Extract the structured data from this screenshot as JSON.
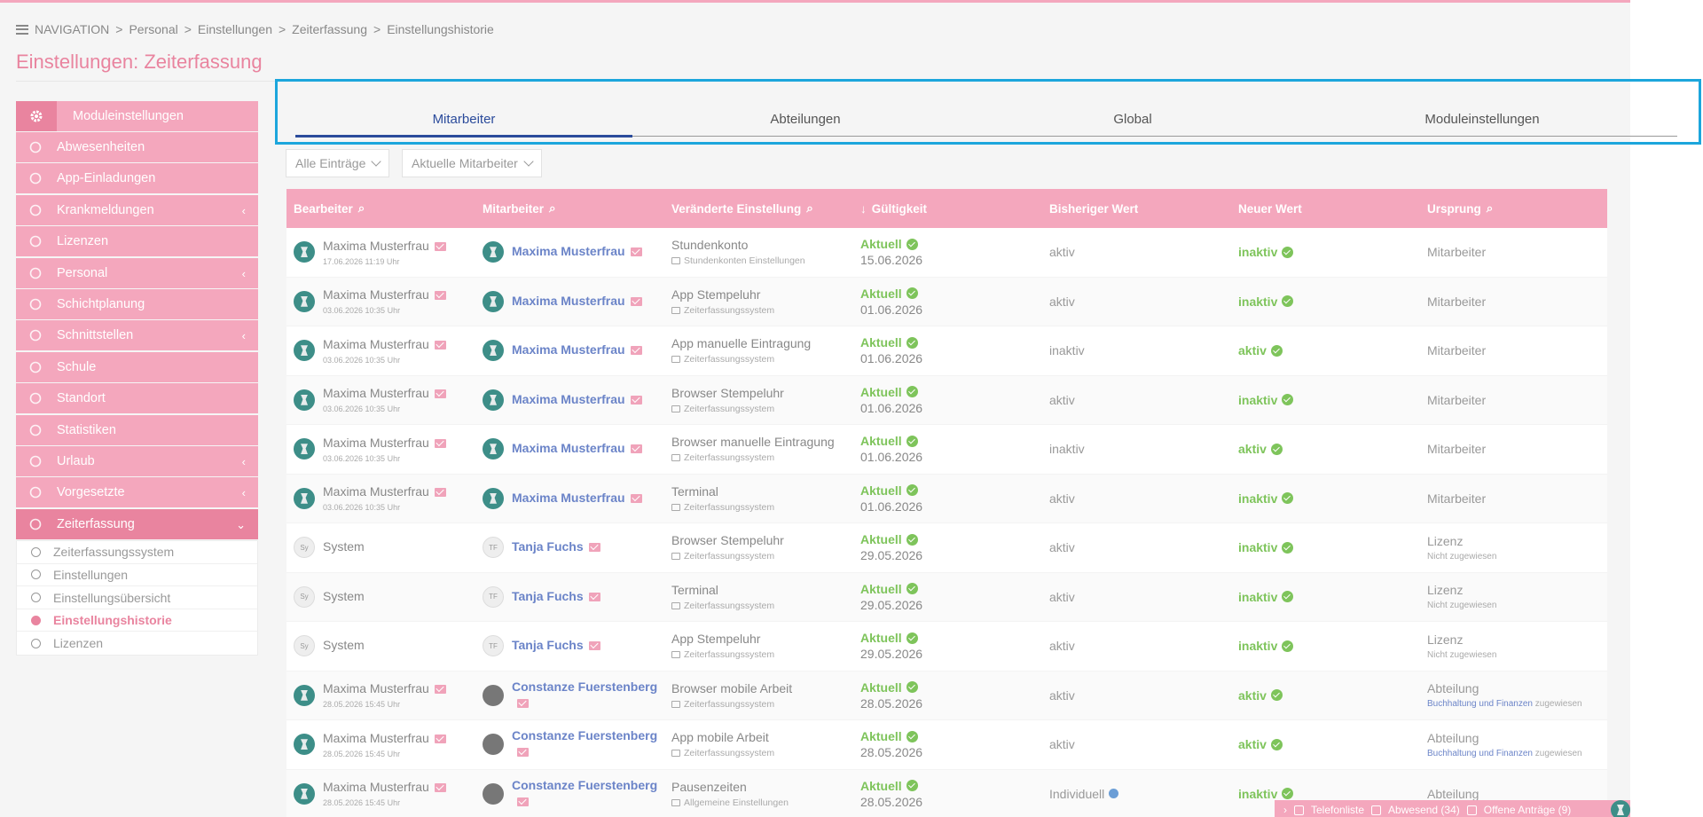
{
  "breadcrumb": {
    "nav": "NAVIGATION",
    "items": [
      "Personal",
      "Einstellungen",
      "Zeiterfassung",
      "Einstellungshistorie"
    ]
  },
  "page_title": "Einstellungen: Zeiterfassung",
  "sidebar": {
    "header": "Moduleinstellungen",
    "items": [
      {
        "label": "Abwesenheiten",
        "icon": "ban-icon",
        "chevron": false
      },
      {
        "label": "App-Einladungen",
        "icon": "user-icon",
        "chevron": false
      },
      {
        "label": "Krankmeldungen",
        "icon": "medkit-icon",
        "chevron": true
      },
      {
        "label": "Lizenzen",
        "icon": "circle-icon",
        "chevron": false
      },
      {
        "label": "Personal",
        "icon": "users-icon",
        "chevron": true
      },
      {
        "label": "Schichtplanung",
        "icon": "calendar-icon",
        "chevron": false
      },
      {
        "label": "Schnittstellen",
        "icon": "network-icon",
        "chevron": true
      },
      {
        "label": "Schule",
        "icon": "graduation-icon",
        "chevron": false
      },
      {
        "label": "Standort",
        "icon": "map-pin-icon",
        "chevron": false
      },
      {
        "label": "Statistiken",
        "icon": "chart-icon",
        "chevron": false
      },
      {
        "label": "Urlaub",
        "icon": "plane-icon",
        "chevron": true
      },
      {
        "label": "Vorgesetzte",
        "icon": "org-chart-icon",
        "chevron": true
      },
      {
        "label": "Zeiterfassung",
        "icon": "clock-icon",
        "chevron": true
      }
    ],
    "chev_left": "‹",
    "chev_down": "⌄",
    "submenu": [
      {
        "label": "Zeiterfassungssystem",
        "active": false
      },
      {
        "label": "Einstellungen",
        "active": false
      },
      {
        "label": "Einstellungsübersicht",
        "active": false
      },
      {
        "label": "Einstellungshistorie",
        "active": true
      },
      {
        "label": "Lizenzen",
        "active": false
      }
    ]
  },
  "tabs": [
    {
      "label": "Mitarbeiter",
      "active": true
    },
    {
      "label": "Abteilungen",
      "active": false
    },
    {
      "label": "Global",
      "active": false
    },
    {
      "label": "Moduleinstellungen",
      "active": false
    }
  ],
  "filters": {
    "entries": "Alle Einträge",
    "employees": "Aktuelle Mitarbeiter"
  },
  "table": {
    "headers": [
      "Bearbeiter",
      "Mitarbeiter",
      "Veränderte Einstellung",
      "Gültigkeit",
      "Bisheriger Wert",
      "Neuer Wert",
      "Ursprung"
    ],
    "sort_arrow": "↓",
    "rows": [
      {
        "editor": "Maxima Musterfrau",
        "editor_time": "17.06.2026 11:19 Uhr",
        "editor_av": "logo",
        "employee": "Maxima Musterfrau",
        "emp_av": "logo",
        "emp_init": "",
        "setting": "Stundenkonto",
        "setting_src": "Stundenkonten Einstellungen",
        "status": "Aktuell",
        "date": "15.06.2026",
        "old": "aktiv",
        "old_info": false,
        "new": "inaktiv",
        "origin": "Mitarbeiter",
        "origin_sub": "",
        "origin_link": "",
        "origin_suffix": ""
      },
      {
        "editor": "Maxima Musterfrau",
        "editor_time": "03.06.2026 10:35 Uhr",
        "editor_av": "logo",
        "employee": "Maxima Musterfrau",
        "emp_av": "logo",
        "emp_init": "",
        "setting": "App Stempeluhr",
        "setting_src": "Zeiterfassungssystem",
        "status": "Aktuell",
        "date": "01.06.2026",
        "old": "aktiv",
        "old_info": false,
        "new": "inaktiv",
        "origin": "Mitarbeiter",
        "origin_sub": "",
        "origin_link": "",
        "origin_suffix": ""
      },
      {
        "editor": "Maxima Musterfrau",
        "editor_time": "03.06.2026 10:35 Uhr",
        "editor_av": "logo",
        "employee": "Maxima Musterfrau",
        "emp_av": "logo",
        "emp_init": "",
        "setting": "App manuelle Eintragung",
        "setting_src": "Zeiterfassungssystem",
        "status": "Aktuell",
        "date": "01.06.2026",
        "old": "inaktiv",
        "old_info": false,
        "new": "aktiv",
        "origin": "Mitarbeiter",
        "origin_sub": "",
        "origin_link": "",
        "origin_suffix": ""
      },
      {
        "editor": "Maxima Musterfrau",
        "editor_time": "03.06.2026 10:35 Uhr",
        "editor_av": "logo",
        "employee": "Maxima Musterfrau",
        "emp_av": "logo",
        "emp_init": "",
        "setting": "Browser Stempeluhr",
        "setting_src": "Zeiterfassungssystem",
        "status": "Aktuell",
        "date": "01.06.2026",
        "old": "aktiv",
        "old_info": false,
        "new": "inaktiv",
        "origin": "Mitarbeiter",
        "origin_sub": "",
        "origin_link": "",
        "origin_suffix": ""
      },
      {
        "editor": "Maxima Musterfrau",
        "editor_time": "03.06.2026 10:35 Uhr",
        "editor_av": "logo",
        "employee": "Maxima Musterfrau",
        "emp_av": "logo",
        "emp_init": "",
        "setting": "Browser manuelle Eintragung",
        "setting_src": "Zeiterfassungssystem",
        "status": "Aktuell",
        "date": "01.06.2026",
        "old": "inaktiv",
        "old_info": false,
        "new": "aktiv",
        "origin": "Mitarbeiter",
        "origin_sub": "",
        "origin_link": "",
        "origin_suffix": ""
      },
      {
        "editor": "Maxima Musterfrau",
        "editor_time": "03.06.2026 10:35 Uhr",
        "editor_av": "logo",
        "employee": "Maxima Musterfrau",
        "emp_av": "logo",
        "emp_init": "",
        "setting": "Terminal",
        "setting_src": "Zeiterfassungssystem",
        "status": "Aktuell",
        "date": "01.06.2026",
        "old": "aktiv",
        "old_info": false,
        "new": "inaktiv",
        "origin": "Mitarbeiter",
        "origin_sub": "",
        "origin_link": "",
        "origin_suffix": ""
      },
      {
        "editor": "System",
        "editor_time": "",
        "editor_av": "init",
        "editor_init": "Sy",
        "employee": "Tanja Fuchs",
        "emp_av": "init",
        "emp_init": "TF",
        "setting": "Browser Stempeluhr",
        "setting_src": "Zeiterfassungssystem",
        "status": "Aktuell",
        "date": "29.05.2026",
        "old": "aktiv",
        "old_info": false,
        "new": "inaktiv",
        "origin": "Lizenz",
        "origin_sub": "Nicht zugewiesen",
        "origin_link": "",
        "origin_suffix": ""
      },
      {
        "editor": "System",
        "editor_time": "",
        "editor_av": "init",
        "editor_init": "Sy",
        "employee": "Tanja Fuchs",
        "emp_av": "init",
        "emp_init": "TF",
        "setting": "Terminal",
        "setting_src": "Zeiterfassungssystem",
        "status": "Aktuell",
        "date": "29.05.2026",
        "old": "aktiv",
        "old_info": false,
        "new": "inaktiv",
        "origin": "Lizenz",
        "origin_sub": "Nicht zugewiesen",
        "origin_link": "",
        "origin_suffix": ""
      },
      {
        "editor": "System",
        "editor_time": "",
        "editor_av": "init",
        "editor_init": "Sy",
        "employee": "Tanja Fuchs",
        "emp_av": "init",
        "emp_init": "TF",
        "setting": "App Stempeluhr",
        "setting_src": "Zeiterfassungssystem",
        "status": "Aktuell",
        "date": "29.05.2026",
        "old": "aktiv",
        "old_info": false,
        "new": "inaktiv",
        "origin": "Lizenz",
        "origin_sub": "Nicht zugewiesen",
        "origin_link": "",
        "origin_suffix": ""
      },
      {
        "editor": "Maxima Musterfrau",
        "editor_time": "28.05.2026 15:45 Uhr",
        "editor_av": "logo",
        "employee": "Constanze Fuerstenberg",
        "emp_av": "photo",
        "emp_init": "",
        "setting": "Browser mobile Arbeit",
        "setting_src": "Zeiterfassungssystem",
        "status": "Aktuell",
        "date": "28.05.2026",
        "old": "aktiv",
        "old_info": false,
        "new": "aktiv",
        "origin": "Abteilung",
        "origin_sub": "",
        "origin_link": "Buchhaltung und Finanzen",
        "origin_suffix": " zugewiesen"
      },
      {
        "editor": "Maxima Musterfrau",
        "editor_time": "28.05.2026 15:45 Uhr",
        "editor_av": "logo",
        "employee": "Constanze Fuerstenberg",
        "emp_av": "photo",
        "emp_init": "",
        "setting": "App mobile Arbeit",
        "setting_src": "Zeiterfassungssystem",
        "status": "Aktuell",
        "date": "28.05.2026",
        "old": "aktiv",
        "old_info": false,
        "new": "aktiv",
        "origin": "Abteilung",
        "origin_sub": "",
        "origin_link": "Buchhaltung und Finanzen",
        "origin_suffix": " zugewiesen"
      },
      {
        "editor": "Maxima Musterfrau",
        "editor_time": "28.05.2026 15:45 Uhr",
        "editor_av": "logo",
        "employee": "Constanze Fuerstenberg",
        "emp_av": "photo",
        "emp_init": "",
        "setting": "Pausenzeiten",
        "setting_src": "Allgemeine Einstellungen",
        "status": "Aktuell",
        "date": "28.05.2026",
        "old": "Individuell",
        "old_info": true,
        "new": "inaktiv",
        "origin": "Abteilung",
        "origin_sub": "",
        "origin_link": "",
        "origin_suffix": ""
      }
    ]
  },
  "bottombar": {
    "arrow": "›",
    "phone": "Telefonliste",
    "absent": "Abwesend (34)",
    "requests": "Offene Anträge (9)"
  },
  "colors": {
    "primary": "#f4a7bd",
    "primary_dark": "#e9849f",
    "tab_active": "#2b4b9b",
    "highlight": "#1ca6dc",
    "green": "#7ec45b"
  }
}
